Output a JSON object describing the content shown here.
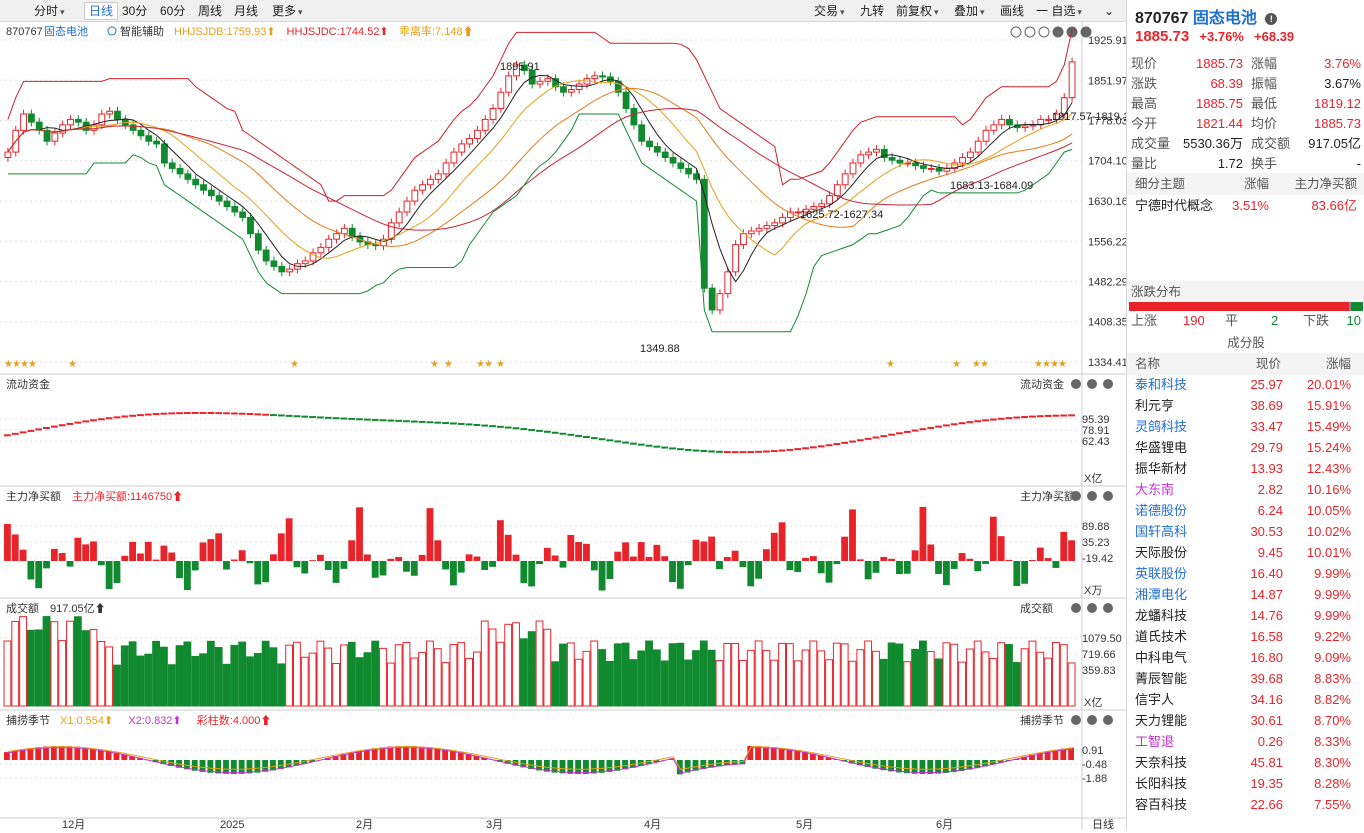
{
  "toolbar": {
    "left": [
      {
        "label": "分时",
        "dropdown": true
      },
      {
        "label": "日线",
        "active": true
      },
      {
        "label": "30分"
      },
      {
        "label": "60分"
      },
      {
        "label": "周线"
      },
      {
        "label": "月线"
      },
      {
        "label": "更多",
        "dropdown": true
      }
    ],
    "right": [
      {
        "label": "交易",
        "dropdown": true
      },
      {
        "label": "九转"
      },
      {
        "label": "前复权",
        "dropdown": true
      },
      {
        "label": "叠加",
        "dropdown": true
      },
      {
        "label": "画线"
      },
      {
        "label": "一 自选",
        "dropdown": true
      }
    ]
  },
  "main_chart": {
    "code": "870767",
    "name": "固态电池",
    "assist_label": "智能辅助",
    "indicators": [
      {
        "text": "HHJSJDB:1759.93",
        "color": "#e8a01a"
      },
      {
        "text": "HHJSJDC:1744.52",
        "color": "#e8242a"
      },
      {
        "text": "乖离率:7.148",
        "color": "#e8a01a"
      }
    ],
    "y_ticks": [
      "1925.91",
      "1851.97",
      "1778.03",
      "1704.10",
      "1630.16",
      "1556.22",
      "1482.29",
      "1408.35",
      "1334.41"
    ],
    "annotations": [
      "1895.91",
      "1349.88",
      "1817.57-1819.1",
      "1683.13-1684.09",
      "1625.72-1627.34"
    ]
  },
  "chart_data": [
    {
      "type": "candlestick",
      "title": "870767 固态电池 日线",
      "y_range": [
        1334.41,
        1925.91
      ],
      "high_label": "1895.91",
      "low_label": "1349.88",
      "close_series": [
        1720,
        1760,
        1790,
        1775,
        1760,
        1740,
        1755,
        1770,
        1780,
        1775,
        1760,
        1770,
        1790,
        1795,
        1780,
        1770,
        1760,
        1750,
        1740,
        1735,
        1700,
        1690,
        1680,
        1670,
        1660,
        1650,
        1640,
        1630,
        1620,
        1610,
        1600,
        1570,
        1540,
        1520,
        1510,
        1500,
        1505,
        1515,
        1520,
        1535,
        1545,
        1560,
        1570,
        1580,
        1565,
        1555,
        1550,
        1548,
        1560,
        1590,
        1610,
        1630,
        1650,
        1660,
        1670,
        1680,
        1700,
        1720,
        1735,
        1745,
        1760,
        1780,
        1800,
        1830,
        1860,
        1880,
        1870,
        1845,
        1850,
        1855,
        1840,
        1830,
        1835,
        1845,
        1855,
        1860,
        1858,
        1850,
        1830,
        1800,
        1770,
        1740,
        1730,
        1720,
        1710,
        1700,
        1690,
        1680,
        1670,
        1470,
        1430,
        1460,
        1500,
        1550,
        1570,
        1575,
        1580,
        1585,
        1590,
        1600,
        1610,
        1610,
        1615,
        1620,
        1625,
        1640,
        1660,
        1680,
        1700,
        1715,
        1720,
        1725,
        1710,
        1705,
        1700,
        1700,
        1695,
        1690,
        1690,
        1685,
        1690,
        1700,
        1710,
        1720,
        1740,
        1760,
        1770,
        1780,
        1770,
        1765,
        1768,
        1770,
        1780,
        1780,
        1790,
        1820,
        1885.73
      ]
    },
    {
      "type": "line",
      "title": "流动资金",
      "y_ticks": [
        "95.39",
        "78.91",
        "62.43"
      ],
      "unit": "X亿"
    },
    {
      "type": "bar",
      "title": "主力净买额",
      "label": "主力净买额:1146750",
      "y_ticks": [
        "89.88",
        "35.23",
        "-19.42"
      ],
      "unit": "X万"
    },
    {
      "type": "bar",
      "title": "成交额",
      "label": "917.05亿",
      "y_ticks": [
        "1079.50",
        "719.66",
        "359.83"
      ],
      "unit": "X亿"
    },
    {
      "type": "bar",
      "title": "捕捞季节",
      "labels": [
        {
          "text": "X1:0.554",
          "color": "#e8a01a"
        },
        {
          "text": "X2:0.832",
          "color": "#c630d0"
        },
        {
          "text": "彩柱数:4.000",
          "color": "#e8242a"
        }
      ],
      "y_ticks": [
        "0.91",
        "-0.48",
        "-1.88"
      ]
    }
  ],
  "sub_panels": [
    {
      "name": "流动资金"
    },
    {
      "name": "主力净买额"
    },
    {
      "name": "成交额"
    },
    {
      "name": "捕捞季节"
    }
  ],
  "x_axis": [
    "12月",
    "2025",
    "2月",
    "3月",
    "4月",
    "5月",
    "6月",
    "日线"
  ],
  "sidebar": {
    "code": "870767",
    "name": "固态电池",
    "price": "1885.73",
    "change_pct": "+3.76%",
    "change": "+68.39",
    "quote": [
      [
        "现价",
        "1885.73",
        "red",
        "涨幅",
        "3.76%",
        "red"
      ],
      [
        "涨跌",
        "68.39",
        "red",
        "振幅",
        "3.67%",
        "blk"
      ],
      [
        "最高",
        "1885.75",
        "red",
        "最低",
        "1819.12",
        "red"
      ],
      [
        "今开",
        "1821.44",
        "red",
        "均价",
        "1885.73",
        "red"
      ],
      [
        "成交量",
        "5530.36万",
        "blk",
        "成交额",
        "917.05亿",
        "blk"
      ],
      [
        "量比",
        "1.72",
        "blk",
        "换手",
        "-",
        "blk"
      ]
    ],
    "theme_headers": [
      "细分主题",
      "涨幅",
      "主力净买额"
    ],
    "themes": [
      [
        "宁德时代概念",
        "3.51%",
        "83.66亿"
      ]
    ],
    "dist_title": "涨跌分布",
    "dist": {
      "up_label": "上涨",
      "up": "190",
      "flat_label": "平",
      "flat": "2",
      "down_label": "下跌",
      "down": "10"
    },
    "constituents_title": "成分股",
    "constituents_headers": [
      "名称",
      "现价",
      "涨幅"
    ],
    "constituents": [
      [
        "泰和科技",
        "25.97",
        "20.01%",
        "#1e6fd0"
      ],
      [
        "利元亨",
        "38.69",
        "15.91%",
        "#222"
      ],
      [
        "灵鸽科技",
        "33.47",
        "15.49%",
        "#1e6fd0"
      ],
      [
        "华盛锂电",
        "29.79",
        "15.24%",
        "#222"
      ],
      [
        "振华新材",
        "13.93",
        "12.43%",
        "#222"
      ],
      [
        "大东南",
        "2.82",
        "10.16%",
        "#c630d0"
      ],
      [
        "诺德股份",
        "6.24",
        "10.05%",
        "#1e6fd0"
      ],
      [
        "国轩高科",
        "30.53",
        "10.02%",
        "#1e6fd0"
      ],
      [
        "天际股份",
        "9.45",
        "10.01%",
        "#222"
      ],
      [
        "英联股份",
        "16.40",
        "9.99%",
        "#1e6fd0"
      ],
      [
        "湘潭电化",
        "14.87",
        "9.99%",
        "#1e6fd0"
      ],
      [
        "龙蟠科技",
        "14.76",
        "9.99%",
        "#222"
      ],
      [
        "道氏技术",
        "16.58",
        "9.22%",
        "#222"
      ],
      [
        "中科电气",
        "16.80",
        "9.09%",
        "#222"
      ],
      [
        "菁辰智能",
        "39.68",
        "8.83%",
        "#222"
      ],
      [
        "信宇人",
        "34.16",
        "8.82%",
        "#222"
      ],
      [
        "天力锂能",
        "30.61",
        "8.70%",
        "#222"
      ],
      [
        "工智退",
        "0.26",
        "8.33%",
        "#c630d0"
      ],
      [
        "天奈科技",
        "45.81",
        "8.30%",
        "#222"
      ],
      [
        "长阳科技",
        "19.35",
        "8.28%",
        "#222"
      ],
      [
        "容百科技",
        "22.66",
        "7.55%",
        "#222"
      ]
    ]
  }
}
